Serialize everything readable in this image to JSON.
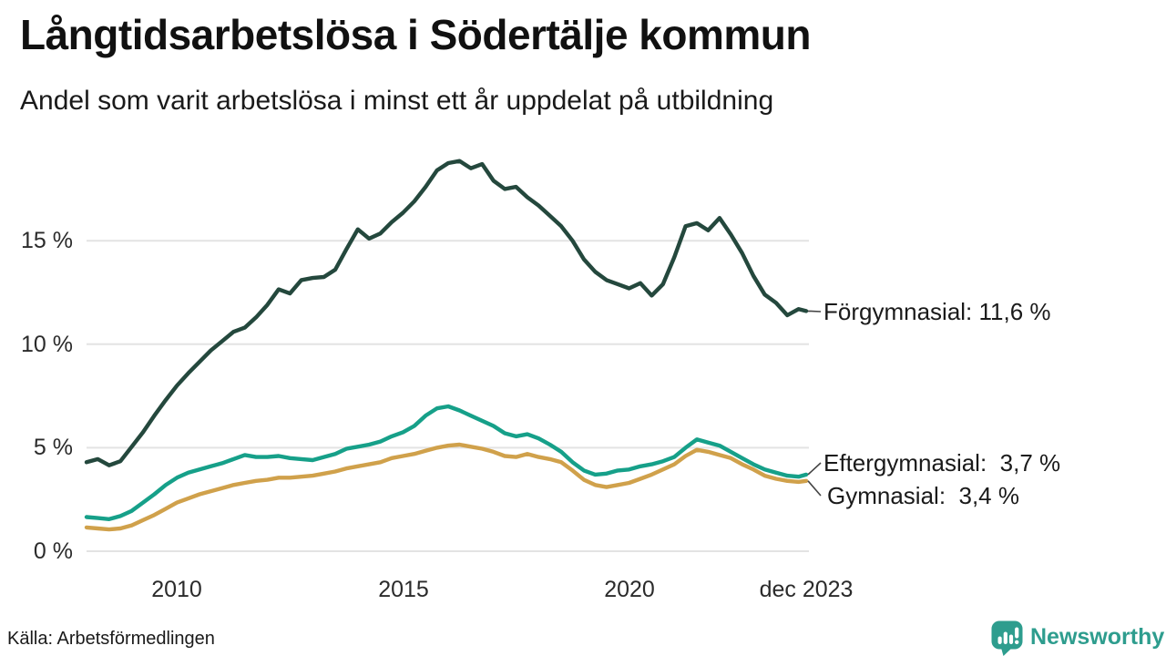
{
  "chart_data": {
    "type": "line",
    "title": "Långtidsarbetslösa i Södertälje kommun",
    "subtitle": "Andel som varit arbetslösa i minst ett år uppdelat på utbildning",
    "grid_color": "#e3e3e3",
    "x_axis": {
      "range_years": [
        2008.0,
        2023.917
      ],
      "ticks": [
        {
          "label": "2010",
          "year": 2010
        },
        {
          "label": "2015",
          "year": 2015
        },
        {
          "label": "2020",
          "year": 2020
        },
        {
          "label": "dec 2023",
          "year": 2023.917
        }
      ]
    },
    "y_axis": {
      "unit": "%",
      "range": [
        0,
        20
      ],
      "ticks": [
        {
          "label": "0 %",
          "value": 0
        },
        {
          "label": "5 %",
          "value": 5
        },
        {
          "label": "10 %",
          "value": 10
        },
        {
          "label": "15 %",
          "value": 15
        }
      ]
    },
    "series": [
      {
        "name": "Förgymnasial",
        "end_label": "Förgymnasial: 11,6 %",
        "end_value_text": "11,6 %",
        "color": "#24483d",
        "x_start": 2008.0,
        "x_step": 0.25,
        "x_end": 2023.917,
        "values": [
          4.3,
          4.45,
          4.15,
          4.35,
          5.05,
          5.75,
          6.55,
          7.3,
          8.0,
          8.6,
          9.15,
          9.7,
          10.15,
          10.6,
          10.8,
          11.3,
          11.9,
          12.65,
          12.45,
          13.1,
          13.2,
          13.25,
          13.6,
          14.6,
          15.55,
          15.1,
          15.35,
          15.9,
          16.35,
          16.9,
          17.6,
          18.4,
          18.75,
          18.85,
          18.5,
          18.7,
          17.9,
          17.5,
          17.6,
          17.1,
          16.7,
          16.2,
          15.7,
          15.0,
          14.1,
          13.5,
          13.1,
          12.9,
          12.7,
          12.95,
          12.35,
          12.9,
          14.2,
          15.7,
          15.85,
          15.5,
          16.1,
          15.3,
          14.4,
          13.3,
          12.4,
          12.0,
          11.4,
          11.7,
          11.6
        ]
      },
      {
        "name": "Eftergymnasial",
        "end_label": "Eftergymnasial:  3,7 %",
        "end_value_text": "3,7 %",
        "color": "#16a089",
        "x_start": 2008.0,
        "x_step": 0.25,
        "x_end": 2023.917,
        "values": [
          1.65,
          1.6,
          1.55,
          1.7,
          1.95,
          2.35,
          2.75,
          3.2,
          3.55,
          3.8,
          3.95,
          4.1,
          4.25,
          4.45,
          4.65,
          4.55,
          4.55,
          4.6,
          4.5,
          4.45,
          4.4,
          4.55,
          4.7,
          4.95,
          5.05,
          5.15,
          5.3,
          5.55,
          5.75,
          6.05,
          6.55,
          6.9,
          7.0,
          6.8,
          6.55,
          6.3,
          6.05,
          5.7,
          5.55,
          5.65,
          5.45,
          5.15,
          4.8,
          4.3,
          3.9,
          3.7,
          3.75,
          3.9,
          3.95,
          4.1,
          4.2,
          4.35,
          4.55,
          5.0,
          5.4,
          5.25,
          5.1,
          4.8,
          4.5,
          4.2,
          3.95,
          3.8,
          3.65,
          3.6,
          3.7
        ]
      },
      {
        "name": "Gymnasial",
        "end_label": "Gymnasial:  3,4 %",
        "end_value_text": "3,4 %",
        "color": "#d0a14b",
        "x_start": 2008.0,
        "x_step": 0.25,
        "x_end": 2023.917,
        "values": [
          1.15,
          1.1,
          1.05,
          1.1,
          1.25,
          1.5,
          1.75,
          2.05,
          2.35,
          2.55,
          2.75,
          2.9,
          3.05,
          3.2,
          3.3,
          3.4,
          3.45,
          3.55,
          3.55,
          3.6,
          3.65,
          3.75,
          3.85,
          4.0,
          4.1,
          4.2,
          4.3,
          4.5,
          4.6,
          4.7,
          4.85,
          5.0,
          5.1,
          5.15,
          5.05,
          4.95,
          4.8,
          4.6,
          4.55,
          4.7,
          4.55,
          4.45,
          4.3,
          3.9,
          3.45,
          3.2,
          3.1,
          3.2,
          3.3,
          3.5,
          3.7,
          3.95,
          4.2,
          4.6,
          4.9,
          4.8,
          4.65,
          4.5,
          4.2,
          3.95,
          3.65,
          3.5,
          3.4,
          3.35,
          3.4
        ]
      }
    ],
    "legend_position": "right-end-labels"
  },
  "footer": {
    "source": "Källa: Arbetsförmedlingen",
    "brand": "Newsworthy",
    "brand_color": "#2e9d8e"
  }
}
